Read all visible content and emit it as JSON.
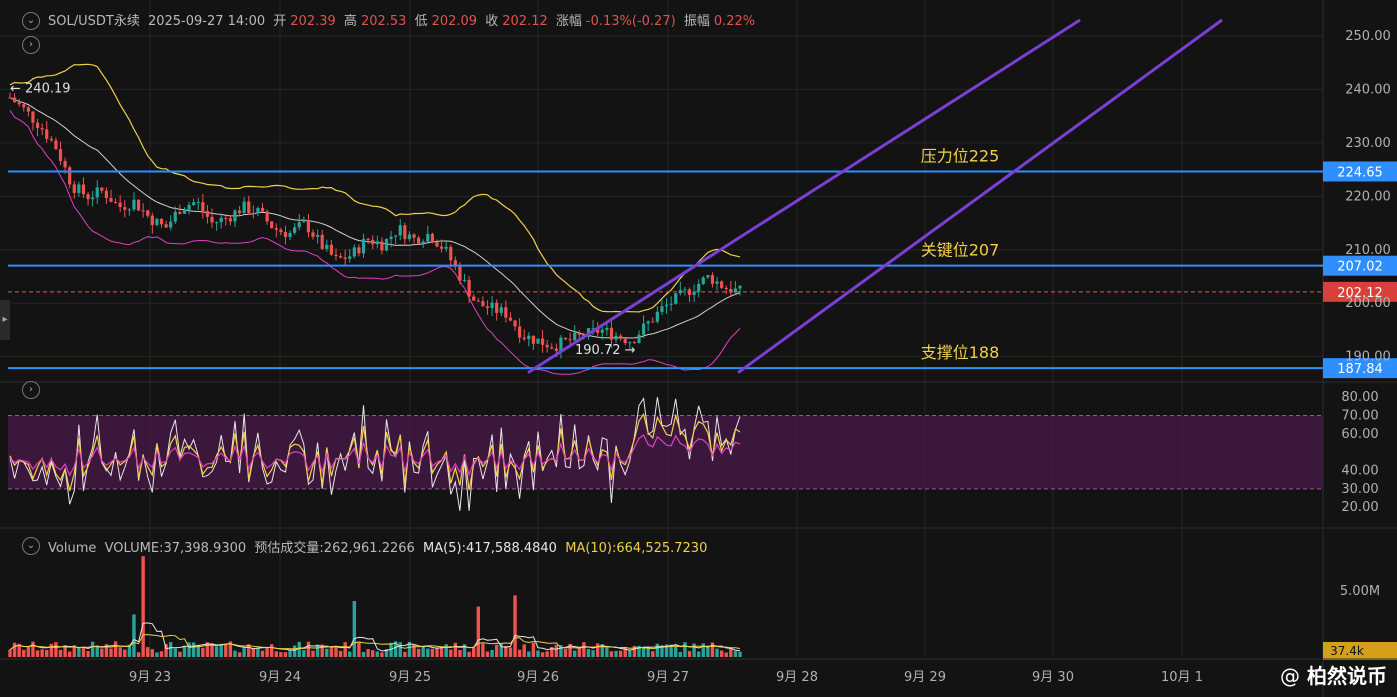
{
  "header": {
    "symbol": "SOL/USDT永续",
    "datetime": "2025-09-27 14:00",
    "open_label": "开",
    "open": "202.39",
    "high_label": "高",
    "high": "202.53",
    "low_label": "低",
    "low": "202.09",
    "close_label": "收",
    "close": "202.12",
    "change_label": "涨幅",
    "change": "-0.13%(-0.27)",
    "amplitude_label": "振幅",
    "amplitude": "0.22%"
  },
  "volume_header": {
    "title": "Volume",
    "volume": "VOLUME:37,398.9300",
    "predicted": "预估成交量:262,961.2266",
    "ma5": "MA(5):417,588.4840",
    "ma10": "MA(10):664,525.7230"
  },
  "watermark": {
    "at": "@",
    "name": "柏然说币"
  },
  "colors": {
    "up": "#26a69a",
    "down": "#ef5350",
    "hline": "#2f8fff",
    "channel": "#7b3fd6",
    "annotation": "#f0d048",
    "boll_upper": "#f0d048",
    "boll_mid": "#d0d0d0",
    "boll_lower": "#e040c0",
    "rsi_band": "#4a1a4a"
  },
  "chart_data": [
    {
      "type": "candlestick",
      "name": "price",
      "x_ticks": [
        "9月 23",
        "9月 24",
        "9月 25",
        "9月 26",
        "9月 27",
        "9月 28",
        "9月 29",
        "9月 30",
        "10月 1"
      ],
      "y_ticks": [
        "250.00",
        "240.00",
        "230.00",
        "220.00",
        "210.00",
        "200.00",
        "190.00"
      ],
      "ylim": [
        186,
        253
      ],
      "horizontal_lines": [
        {
          "value": 224.65,
          "label": "224.65",
          "annotation": "压力位225"
        },
        {
          "value": 207.02,
          "label": "207.02",
          "annotation": "关键位207"
        },
        {
          "value": 187.84,
          "label": "187.84",
          "annotation": "支撑位188"
        }
      ],
      "current_price": {
        "value": 202.12,
        "label": "202.12"
      },
      "high_marker": {
        "value": 240.19,
        "label": "← 240.19"
      },
      "low_marker": {
        "value": 190.72,
        "label": "190.72 →"
      },
      "channel": "ascending, two parallel lines",
      "close_path": [
        238.5,
        236,
        233,
        229,
        222,
        220,
        221,
        218,
        219,
        216,
        214,
        218,
        219,
        215,
        216,
        218,
        217,
        214,
        213,
        215,
        211,
        208,
        209,
        212,
        211,
        214,
        212,
        213,
        210,
        205,
        200,
        199,
        198,
        194,
        193,
        192,
        193,
        194,
        195,
        194,
        193,
        196,
        199,
        201,
        203,
        205,
        203,
        202.12
      ]
    },
    {
      "type": "line",
      "name": "rsi",
      "y_ticks": [
        "80.00",
        "70.00",
        "60.00",
        "40.00",
        "30.00",
        "20.00"
      ],
      "ylim": [
        13,
        85
      ],
      "band": [
        30,
        70
      ]
    },
    {
      "type": "bar",
      "name": "volume",
      "y_ticks": [
        "5.00M"
      ],
      "last_value_label": "37.4k"
    }
  ]
}
